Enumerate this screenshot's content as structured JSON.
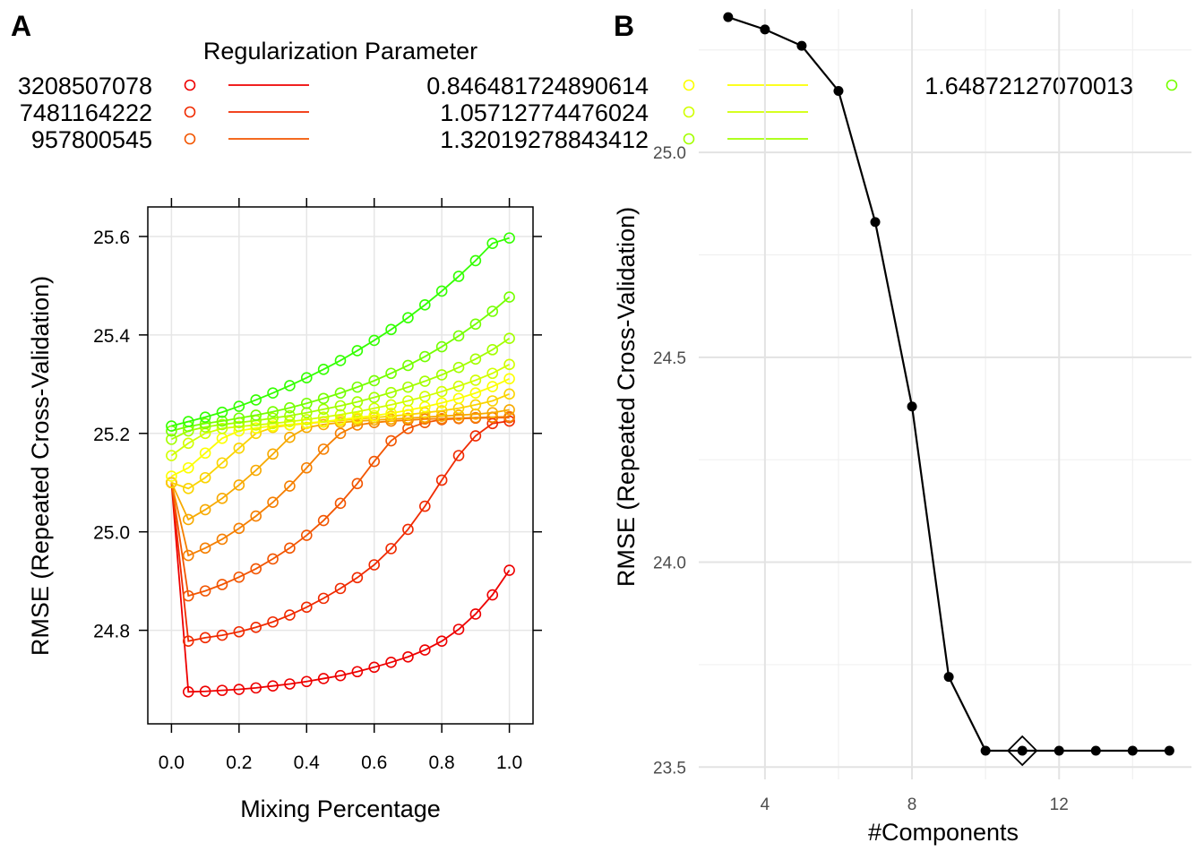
{
  "panel_labels": [
    "A",
    "B"
  ],
  "chart_data": [
    {
      "type": "line",
      "panel": "A",
      "xlabel": "Mixing Percentage",
      "ylabel": "RMSE (Repeated Cross-Validation)",
      "legend_title": "Regularization Parameter",
      "legend_placement": "top",
      "xlim": [
        -0.07,
        1.07
      ],
      "ylim": [
        24.61,
        25.66
      ],
      "xticks": [
        "0.0",
        "0.2",
        "0.4",
        "0.6",
        "0.8",
        "1.0"
      ],
      "yticks": [
        "24.8",
        "25.0",
        "25.2",
        "25.4",
        "25.6"
      ],
      "grid": true,
      "x": [
        0,
        0.05,
        0.1,
        0.15,
        0.2,
        0.25,
        0.3,
        0.35,
        0.4,
        0.45,
        0.5,
        0.55,
        0.6,
        0.65,
        0.7,
        0.75,
        0.8,
        0.85,
        0.9,
        0.95,
        1.0
      ],
      "series": [
        {
          "name": "3208507078",
          "color": "#ee0000",
          "values": [
            25.1,
            24.675,
            24.676,
            24.678,
            24.68,
            24.683,
            24.687,
            24.691,
            24.696,
            24.702,
            24.708,
            24.716,
            24.725,
            24.735,
            24.746,
            24.76,
            24.778,
            24.802,
            24.833,
            24.872,
            24.922
          ]
        },
        {
          "name": "7481164222",
          "color": "#f02a00",
          "values": [
            25.1,
            24.778,
            24.785,
            24.79,
            24.797,
            24.806,
            24.817,
            24.831,
            24.847,
            24.865,
            24.885,
            24.907,
            24.933,
            24.966,
            25.005,
            25.052,
            25.105,
            25.155,
            25.195,
            25.22,
            25.225
          ]
        },
        {
          "name": "957800545",
          "color": "#f25500",
          "values": [
            25.1,
            24.87,
            24.88,
            24.893,
            24.908,
            24.925,
            24.945,
            24.967,
            24.993,
            25.023,
            25.058,
            25.098,
            25.143,
            25.185,
            25.21,
            25.222,
            25.228,
            25.23,
            25.231,
            25.232,
            25.232
          ]
        },
        {
          "name": "",
          "color": "#f57f00",
          "values": [
            25.1,
            24.952,
            24.967,
            24.985,
            25.007,
            25.032,
            25.06,
            25.093,
            25.13,
            25.168,
            25.2,
            25.217,
            25.222,
            25.225,
            25.227,
            25.229,
            25.23,
            25.231,
            25.232,
            25.233,
            25.234
          ]
        },
        {
          "name": "",
          "color": "#f7aa00",
          "values": [
            25.1,
            25.025,
            25.045,
            25.068,
            25.095,
            25.125,
            25.158,
            25.192,
            25.212,
            25.218,
            25.222,
            25.225,
            25.227,
            25.229,
            25.231,
            25.233,
            25.235,
            25.237,
            25.239,
            25.242,
            25.248
          ]
        },
        {
          "name": "",
          "color": "#fad400",
          "values": [
            25.1,
            25.088,
            25.11,
            25.14,
            25.17,
            25.2,
            25.212,
            25.217,
            25.22,
            25.223,
            25.226,
            25.229,
            25.232,
            25.235,
            25.238,
            25.242,
            25.246,
            25.251,
            25.258,
            25.266,
            25.28
          ]
        },
        {
          "name": "0.846481724890614",
          "color": "#fcff00",
          "values": [
            25.113,
            25.13,
            25.16,
            25.19,
            25.205,
            25.211,
            25.215,
            25.218,
            25.221,
            25.224,
            25.228,
            25.232,
            25.236,
            25.241,
            25.247,
            25.254,
            25.262,
            25.271,
            25.282,
            25.295,
            25.311
          ]
        },
        {
          "name": "1.05712774476024",
          "color": "#d1ff00",
          "values": [
            25.155,
            25.18,
            25.2,
            25.21,
            25.214,
            25.217,
            25.22,
            25.224,
            25.228,
            25.233,
            25.238,
            25.244,
            25.251,
            25.258,
            25.266,
            25.275,
            25.285,
            25.296,
            25.308,
            25.322,
            25.34
          ]
        },
        {
          "name": "1.32019278843412",
          "color": "#a3ff00",
          "values": [
            25.188,
            25.205,
            25.213,
            25.218,
            25.222,
            25.226,
            25.231,
            25.236,
            25.242,
            25.249,
            25.256,
            25.264,
            25.273,
            25.283,
            25.294,
            25.306,
            25.319,
            25.334,
            25.351,
            25.37,
            25.393
          ]
        },
        {
          "name": "1.64872127070013",
          "color": "#75ff00",
          "values": [
            25.205,
            25.214,
            25.22,
            25.225,
            25.231,
            25.237,
            25.244,
            25.252,
            25.261,
            25.271,
            25.282,
            25.294,
            25.307,
            25.322,
            25.338,
            25.356,
            25.376,
            25.398,
            25.422,
            25.448,
            25.477
          ]
        },
        {
          "name": "",
          "color": "#33ff00",
          "values": [
            25.215,
            25.224,
            25.233,
            25.243,
            25.255,
            25.268,
            25.282,
            25.297,
            25.313,
            25.33,
            25.348,
            25.368,
            25.389,
            25.411,
            25.435,
            25.461,
            25.489,
            25.519,
            25.551,
            25.586,
            25.597
          ]
        }
      ]
    },
    {
      "type": "line",
      "panel": "B",
      "xlabel": "#Components",
      "ylabel": "RMSE (Repeated Cross-Validation)",
      "xlim": [
        2.2,
        15.6
      ],
      "ylim": [
        23.47,
        25.35
      ],
      "xticks": [
        "4",
        "8",
        "12"
      ],
      "yticks": [
        "23.5",
        "24.0",
        "24.5",
        "25.0"
      ],
      "grid": true,
      "best": {
        "x": 11,
        "y": 23.54
      },
      "x": [
        3,
        4,
        5,
        6,
        7,
        8,
        9,
        10,
        11,
        12,
        13,
        14,
        15
      ],
      "values": [
        25.33,
        25.3,
        25.26,
        25.15,
        24.83,
        24.38,
        23.72,
        23.54,
        23.54,
        23.54,
        23.54,
        23.54,
        23.54
      ]
    }
  ]
}
